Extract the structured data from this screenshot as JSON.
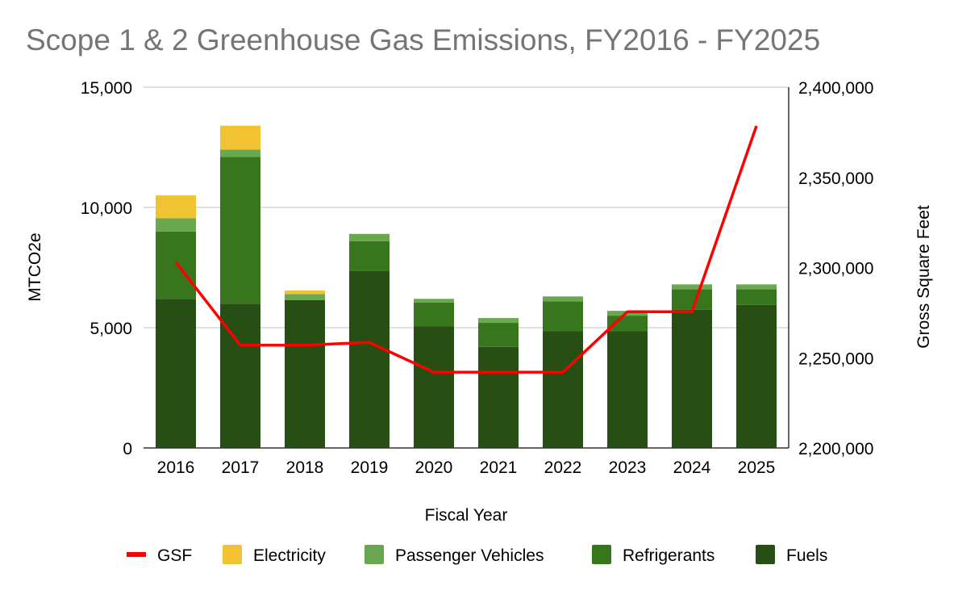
{
  "chart_data": {
    "type": "bar",
    "stacked": true,
    "title": "Scope 1 & 2 Greenhouse Gas Emissions, FY2016 - FY2025",
    "xlabel": "Fiscal Year",
    "ylabel": "MTCO2e",
    "y2label": "Gross Square Feet",
    "categories": [
      "2016",
      "2017",
      "2018",
      "2019",
      "2020",
      "2021",
      "2022",
      "2023",
      "2024",
      "2025"
    ],
    "ylim": [
      0,
      15000
    ],
    "yticks": [
      0,
      5000,
      10000,
      15000
    ],
    "ytick_labels": [
      "0",
      "5,000",
      "10,000",
      "15,000"
    ],
    "y2lim": [
      2200000,
      2400000
    ],
    "y2ticks": [
      2200000,
      2250000,
      2300000,
      2350000,
      2400000
    ],
    "y2tick_labels": [
      "2,200,000",
      "2,250,000",
      "2,300,000",
      "2,350,000",
      "2,400,000"
    ],
    "grid": true,
    "legend_position": "bottom",
    "series": [
      {
        "name": "Fuels",
        "color": "#274e13",
        "values": [
          6200,
          6000,
          6150,
          7350,
          5050,
          4200,
          4850,
          4850,
          5750,
          5950
        ]
      },
      {
        "name": "Refrigerants",
        "color": "#38761d",
        "values": [
          2800,
          6100,
          0,
          1250,
          1000,
          1000,
          1250,
          650,
          850,
          650
        ]
      },
      {
        "name": "Passenger Vehicles",
        "color": "#6aa84f",
        "values": [
          550,
          300,
          250,
          300,
          150,
          200,
          200,
          200,
          200,
          200
        ]
      },
      {
        "name": "Electricity",
        "color": "#f1c232",
        "values": [
          950,
          1000,
          150,
          0,
          0,
          0,
          0,
          0,
          0,
          0
        ]
      }
    ],
    "line_series": {
      "name": "GSF",
      "color": "#ff0000",
      "axis": "right",
      "values": [
        2303000,
        2257000,
        2257000,
        2258500,
        2242000,
        2242000,
        2242000,
        2275500,
        2275500,
        2378500
      ]
    },
    "legend_order": [
      "GSF",
      "Electricity",
      "Passenger Vehicles",
      "Refrigerants",
      "Fuels"
    ]
  }
}
